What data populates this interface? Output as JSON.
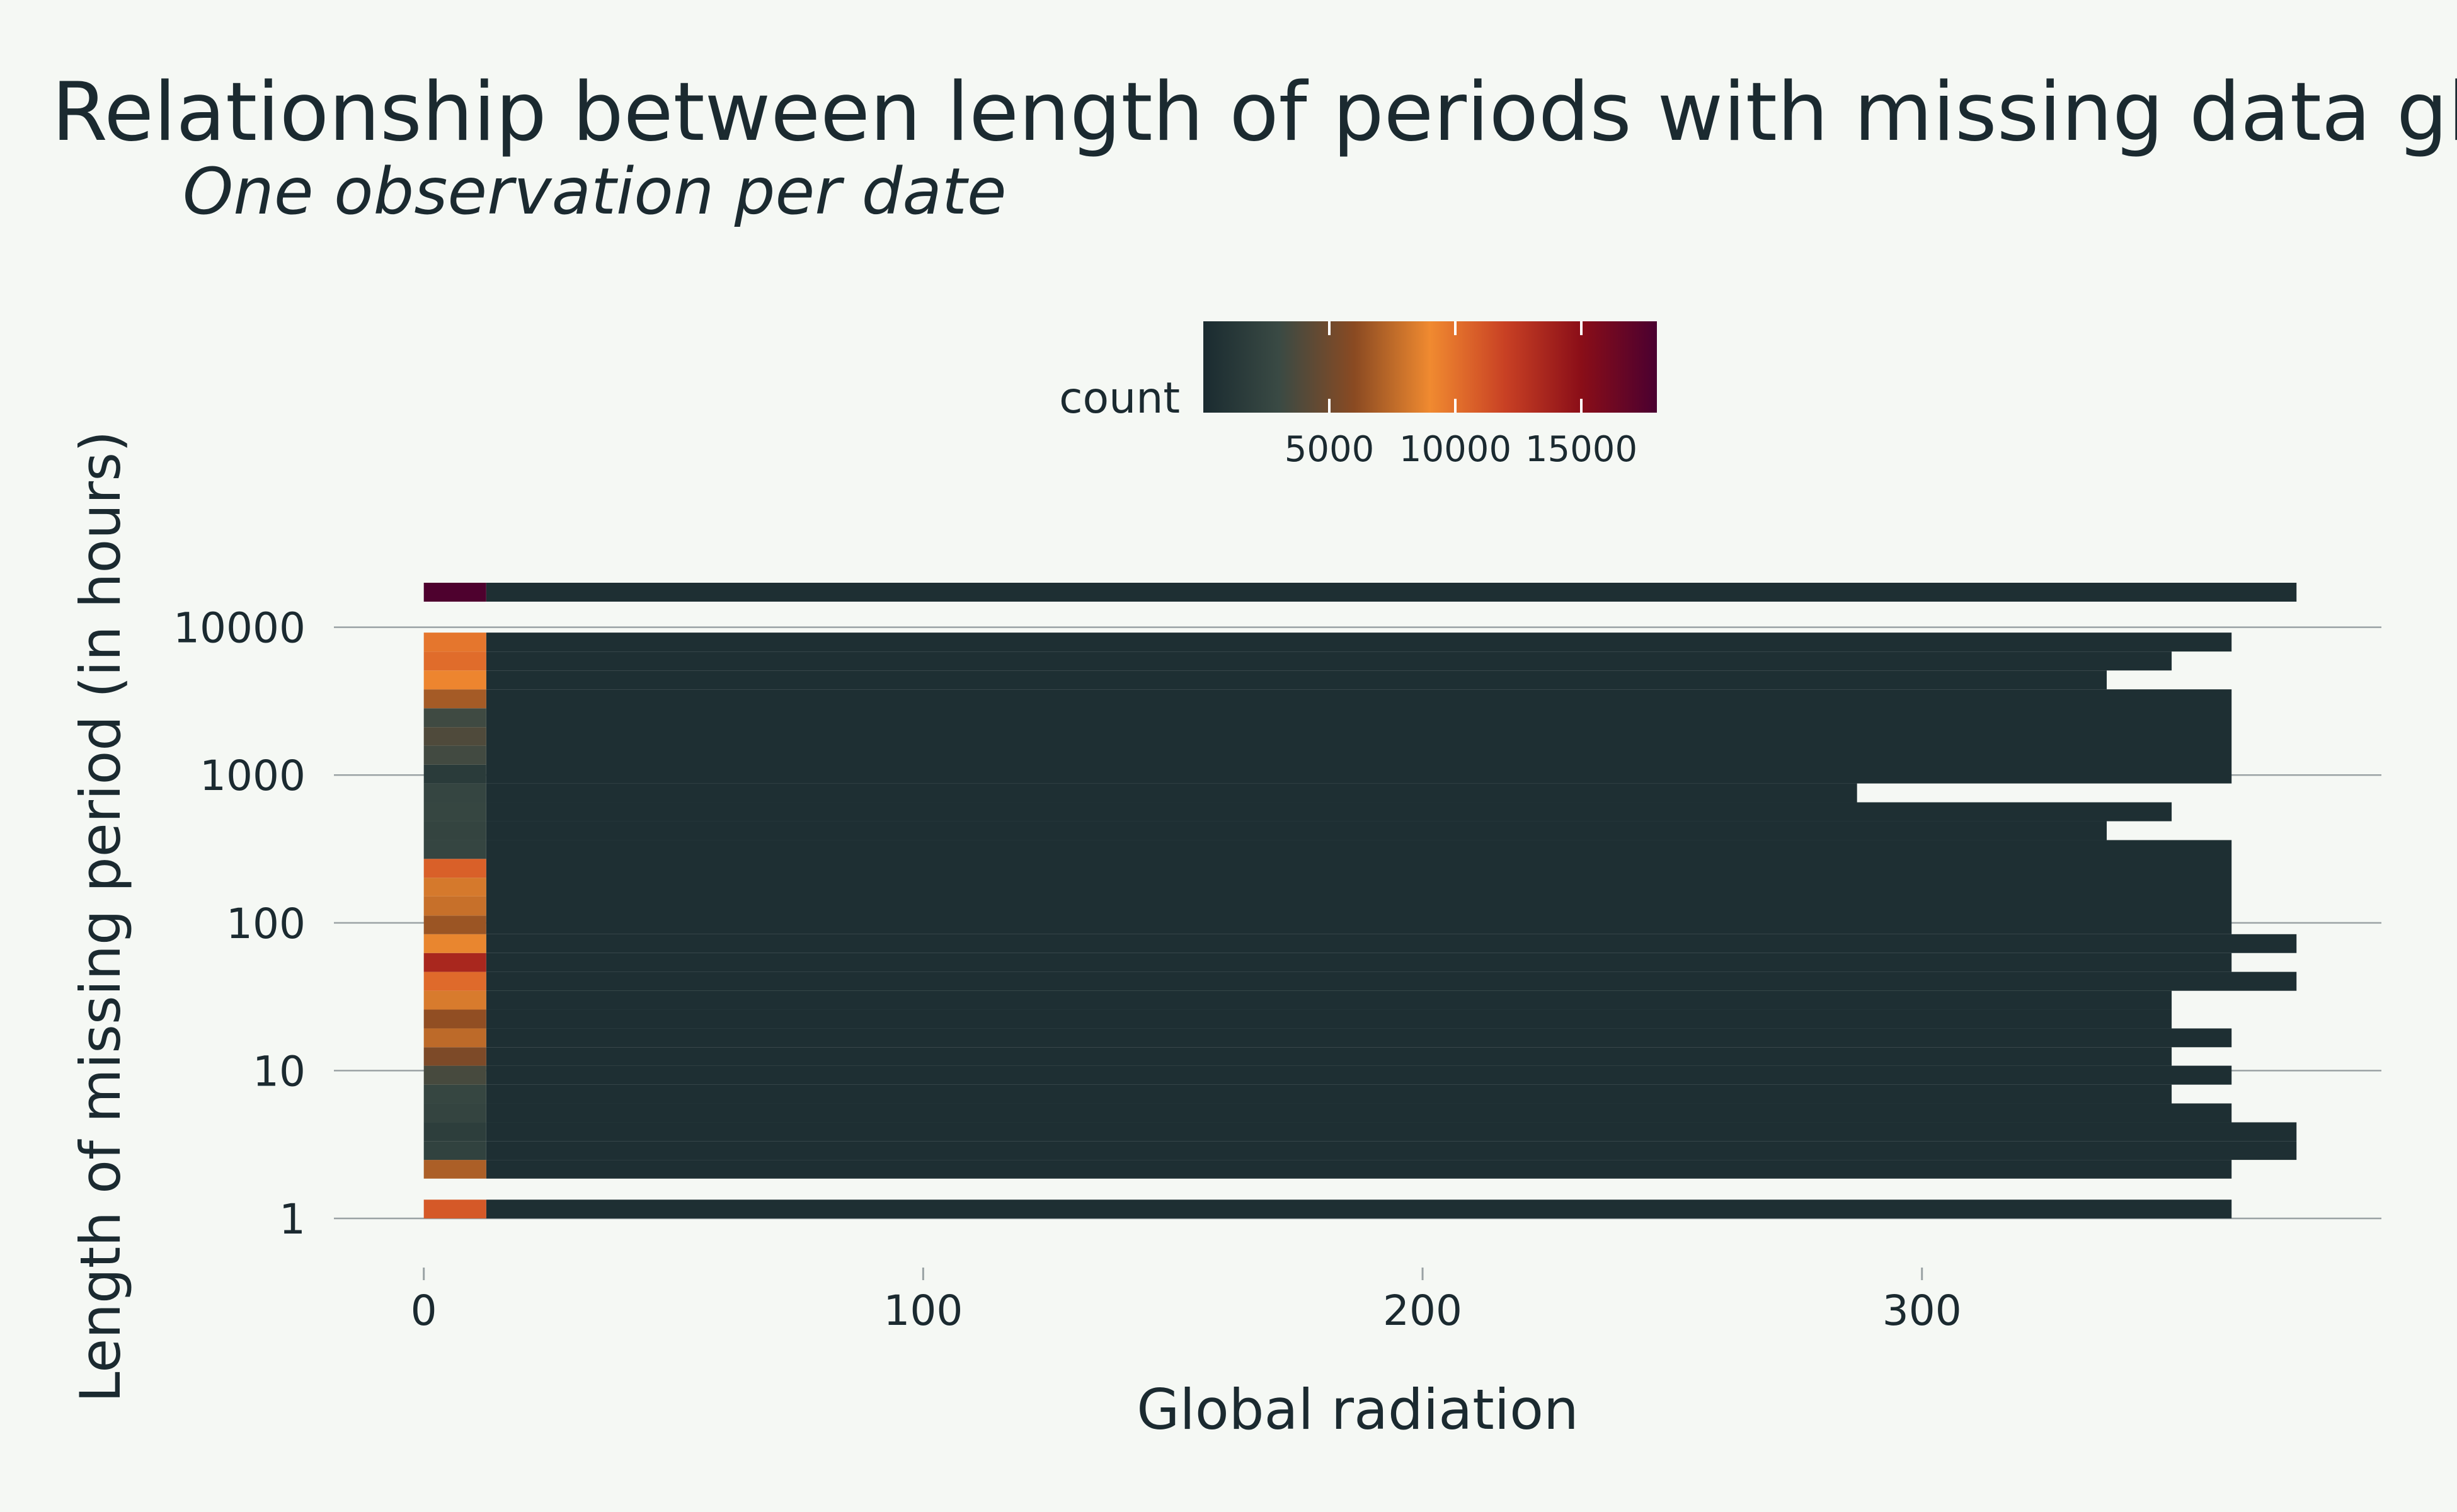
{
  "title": "Relationship between length of periods with missing data global",
  "subtitle": "One observation per date",
  "chart_data": {
    "type": "heatmap",
    "xlabel": "Global radiation",
    "ylabel": "Length of missing period (in hours)",
    "xlim": [
      -18,
      392
    ],
    "x_ticks": [
      0,
      100,
      200,
      300
    ],
    "x_tick_labels": [
      "0",
      "100",
      "200",
      "300"
    ],
    "y_scale": "log",
    "ylim": [
      0.76,
      20000
    ],
    "y_ticks": [
      1,
      10,
      100,
      1000,
      10000
    ],
    "y_tick_labels": [
      "1",
      "10",
      "100",
      "1000",
      "10000"
    ],
    "grid": "horizontal",
    "legend": {
      "title": "count",
      "position": "top",
      "range": [
        0,
        18000
      ],
      "ticks": [
        5000,
        10000,
        15000
      ],
      "tick_labels": [
        "5000",
        "10000",
        "15000"
      ],
      "colors": [
        "#1a2b30",
        "#3a4a44",
        "#8a4a22",
        "#f08a30",
        "#c84024",
        "#8a0e18",
        "#4a0030"
      ]
    },
    "bin_width": 12.5,
    "first_bin_counts_by_length": [
      {
        "length_bin": [
          1.0,
          1.34
        ],
        "count": 11000
      },
      {
        "length_bin": [
          1.86,
          2.49
        ],
        "count": 7000
      },
      {
        "length_bin": [
          2.49,
          3.34
        ],
        "count": 2200
      },
      {
        "length_bin": [
          3.34,
          4.47
        ],
        "count": 1800
      },
      {
        "length_bin": [
          4.47,
          6.0
        ],
        "count": 2400
      },
      {
        "length_bin": [
          6.0,
          8.04
        ],
        "count": 2600
      },
      {
        "length_bin": [
          8.04,
          10.8
        ],
        "count": 3500
      },
      {
        "length_bin": [
          10.8,
          14.4
        ],
        "count": 5500
      },
      {
        "length_bin": [
          14.4,
          19.3
        ],
        "count": 7500
      },
      {
        "length_bin": [
          19.3,
          25.9
        ],
        "count": 6200
      },
      {
        "length_bin": [
          25.9,
          34.7
        ],
        "count": 8300
      },
      {
        "length_bin": [
          34.7,
          46.6
        ],
        "count": 10300
      },
      {
        "length_bin": [
          46.6,
          62.5
        ],
        "count": 13500
      },
      {
        "length_bin": [
          62.5,
          83.8
        ],
        "count": 8800
      },
      {
        "length_bin": [
          83.8,
          112
        ],
        "count": 6500
      },
      {
        "length_bin": [
          112,
          151
        ],
        "count": 7800
      },
      {
        "length_bin": [
          151,
          202
        ],
        "count": 8200
      },
      {
        "length_bin": [
          202,
          271
        ],
        "count": 10700
      },
      {
        "length_bin": [
          271,
          363
        ],
        "count": 2500
      },
      {
        "length_bin": [
          363,
          487
        ],
        "count": 2400
      },
      {
        "length_bin": [
          487,
          654
        ],
        "count": 2600
      },
      {
        "length_bin": [
          654,
          877
        ],
        "count": 2500
      },
      {
        "length_bin": [
          877,
          1176
        ],
        "count": 1500
      },
      {
        "length_bin": [
          1176,
          1580
        ],
        "count": 3300
      },
      {
        "length_bin": [
          1580,
          2110
        ],
        "count": 3800
      },
      {
        "length_bin": [
          2110,
          2830
        ],
        "count": 3200
      },
      {
        "length_bin": [
          2830,
          3800
        ],
        "count": 6800
      },
      {
        "length_bin": [
          3800,
          5100
        ],
        "count": 9200
      },
      {
        "length_bin": [
          5100,
          6850
        ],
        "count": 10200
      },
      {
        "length_bin": [
          6850,
          9200
        ],
        "count": 9800
      },
      {
        "length_bin": [
          14900,
          20000
        ],
        "count": 17800
      }
    ],
    "other_bins_count_approx": 400,
    "max_radiation_by_length": [
      {
        "length_bin": [
          1.0,
          1.34
        ],
        "max_x": 362
      },
      {
        "length_bin": [
          1.86,
          2.49
        ],
        "max_x": 362
      },
      {
        "length_bin": [
          2.49,
          3.34
        ],
        "max_x": 375
      },
      {
        "length_bin": [
          3.34,
          4.47
        ],
        "max_x": 375
      },
      {
        "length_bin": [
          4.47,
          6.0
        ],
        "max_x": 362
      },
      {
        "length_bin": [
          6.0,
          8.04
        ],
        "max_x": 350
      },
      {
        "length_bin": [
          8.04,
          10.8
        ],
        "max_x": 362
      },
      {
        "length_bin": [
          10.8,
          14.4
        ],
        "max_x": 350
      },
      {
        "length_bin": [
          14.4,
          19.3
        ],
        "max_x": 362
      },
      {
        "length_bin": [
          19.3,
          25.9
        ],
        "max_x": 350
      },
      {
        "length_bin": [
          25.9,
          34.7
        ],
        "max_x": 350
      },
      {
        "length_bin": [
          34.7,
          46.6
        ],
        "max_x": 375
      },
      {
        "length_bin": [
          46.6,
          62.5
        ],
        "max_x": 362
      },
      {
        "length_bin": [
          62.5,
          83.8
        ],
        "max_x": 375
      },
      {
        "length_bin": [
          83.8,
          363
        ],
        "max_x": 362
      },
      {
        "length_bin": [
          363,
          487
        ],
        "max_x": 337
      },
      {
        "length_bin": [
          487,
          654
        ],
        "max_x": 350
      },
      {
        "length_bin": [
          654,
          877
        ],
        "max_x": 287
      },
      {
        "length_bin": [
          877,
          3800
        ],
        "max_x": 362
      },
      {
        "length_bin": [
          3800,
          5100
        ],
        "max_x": 337
      },
      {
        "length_bin": [
          5100,
          6850
        ],
        "max_x": 350
      },
      {
        "length_bin": [
          6850,
          9200
        ],
        "max_x": 362
      },
      {
        "length_bin": [
          14900,
          20000
        ],
        "max_x": 375
      }
    ]
  }
}
